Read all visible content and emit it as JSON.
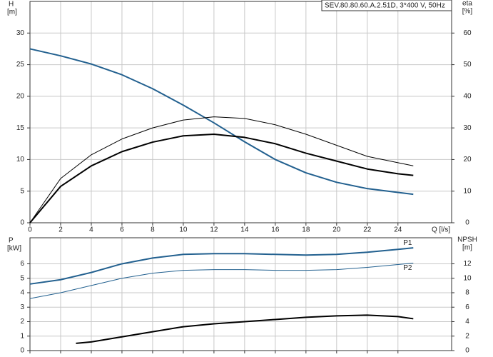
{
  "chart_data": [
    {
      "type": "line",
      "title": "SEV.80.80.60.A.2.51D, 3*400 V, 50Hz",
      "x_label": "Q [l/s]",
      "y_label": "H",
      "y_unit": "[m]",
      "y2_label": "eta",
      "y2_unit": "[%]",
      "xlim": [
        0,
        27.5
      ],
      "xticks": [
        0,
        2,
        4,
        6,
        8,
        10,
        12,
        14,
        16,
        18,
        20,
        22,
        24
      ],
      "ylim": [
        0,
        35
      ],
      "yticks": [
        0,
        5,
        10,
        15,
        20,
        25,
        30
      ],
      "y2lim": [
        0,
        70
      ],
      "y2ticks": [
        0,
        10,
        20,
        30,
        40,
        50,
        60
      ],
      "grid": true,
      "show_xtick_labels": true,
      "series": [
        {
          "color": "#22608f",
          "width": 2,
          "axis": "y",
          "x": [
            0,
            2,
            4,
            6,
            8,
            10,
            12,
            14,
            16,
            18,
            20,
            22,
            24,
            25
          ],
          "values": [
            27.5,
            26.4,
            25.1,
            23.4,
            21.2,
            18.6,
            15.8,
            12.8,
            10.0,
            7.9,
            6.4,
            5.4,
            4.8,
            4.5
          ]
        },
        {
          "color": "#000000",
          "width": 1,
          "axis": "y2",
          "x": [
            0,
            2,
            4,
            6,
            8,
            10,
            12,
            14,
            16,
            18,
            20,
            22,
            24,
            25
          ],
          "values": [
            0,
            14,
            21.5,
            26.5,
            30,
            32.5,
            33.5,
            33,
            31,
            28,
            24.5,
            21,
            19,
            18
          ]
        },
        {
          "color": "#000000",
          "width": 2,
          "axis": "y2",
          "x": [
            0,
            2,
            4,
            6,
            8,
            10,
            12,
            14,
            16,
            18,
            20,
            22,
            24,
            25
          ],
          "values": [
            0,
            11.5,
            18,
            22.5,
            25.5,
            27.5,
            28,
            27,
            25,
            22,
            19.5,
            17,
            15.5,
            15
          ]
        }
      ]
    },
    {
      "type": "line",
      "y_label": "P",
      "y_unit": "[kW]",
      "y2_label": "NPSH",
      "y2_unit": "[m]",
      "xlim": [
        0,
        27.5
      ],
      "xticks": [
        0,
        2,
        4,
        6,
        8,
        10,
        12,
        14,
        16,
        18,
        20,
        22,
        24
      ],
      "ylim": [
        0,
        7.8
      ],
      "yticks": [
        0,
        1,
        2,
        3,
        4,
        5,
        6
      ],
      "y2lim": [
        0,
        15.6
      ],
      "y2ticks": [
        0,
        2,
        4,
        6,
        8,
        10,
        12
      ],
      "grid": true,
      "show_xtick_labels": false,
      "series": [
        {
          "name": "P1",
          "color": "#22608f",
          "width": 2,
          "axis": "y",
          "x": [
            0,
            2,
            4,
            6,
            8,
            10,
            12,
            14,
            16,
            18,
            20,
            22,
            24,
            25
          ],
          "values": [
            4.6,
            4.9,
            5.4,
            6.0,
            6.4,
            6.65,
            6.7,
            6.7,
            6.65,
            6.6,
            6.65,
            6.8,
            7.0,
            7.1
          ]
        },
        {
          "name": "P2",
          "color": "#22608f",
          "width": 1,
          "axis": "y",
          "x": [
            0,
            2,
            4,
            6,
            8,
            10,
            12,
            14,
            16,
            18,
            20,
            22,
            24,
            25
          ],
          "values": [
            3.6,
            4.0,
            4.5,
            5.0,
            5.35,
            5.55,
            5.6,
            5.6,
            5.55,
            5.55,
            5.6,
            5.75,
            5.95,
            6.05
          ]
        },
        {
          "color": "#000000",
          "width": 2,
          "axis": "y2",
          "x": [
            3,
            4,
            6,
            8,
            10,
            12,
            14,
            16,
            18,
            20,
            22,
            24,
            25
          ],
          "values": [
            1.0,
            1.2,
            1.9,
            2.6,
            3.3,
            3.7,
            4.0,
            4.3,
            4.6,
            4.8,
            4.9,
            4.7,
            4.4
          ]
        }
      ]
    }
  ]
}
